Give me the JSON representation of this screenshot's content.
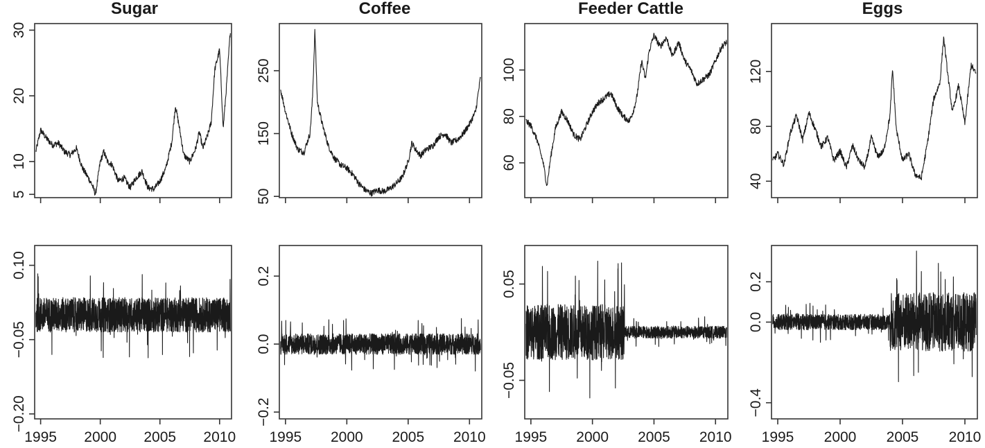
{
  "chart_data": [
    {
      "type": "line",
      "title": "Sugar",
      "xlim": [
        1994.5,
        2011.0
      ],
      "ylim": [
        4.5,
        31
      ],
      "yticks": [
        5,
        10,
        20,
        30
      ],
      "ytick_labels": [
        "5",
        "10",
        "20",
        "30"
      ],
      "xticks": [
        1995,
        2000,
        2005,
        2010
      ],
      "xtick_labels": [],
      "series": [
        {
          "x": [
            1994.6,
            1995.0,
            1995.5,
            1996.0,
            1996.5,
            1997.0,
            1997.5,
            1998.0,
            1998.5,
            1999.0,
            1999.3,
            1999.6,
            2000.0,
            2000.3,
            2000.6,
            2001.0,
            2001.5,
            2002.0,
            2002.5,
            2003.0,
            2003.5,
            2004.0,
            2004.5,
            2005.0,
            2005.5,
            2006.0,
            2006.3,
            2006.6,
            2007.0,
            2007.5,
            2008.0,
            2008.3,
            2008.6,
            2009.0,
            2009.3,
            2009.6,
            2010.0,
            2010.3,
            2010.6,
            2010.9
          ],
          "y": [
            11.5,
            14.8,
            13.5,
            12.5,
            12.8,
            11.5,
            11.0,
            12.0,
            9.0,
            7.5,
            6.5,
            5.0,
            10.0,
            11.5,
            10.0,
            9.5,
            7.0,
            7.5,
            6.0,
            7.5,
            8.5,
            6.0,
            5.8,
            7.0,
            9.0,
            13.0,
            18.5,
            15.5,
            11.0,
            10.0,
            12.0,
            14.5,
            12.0,
            14.0,
            16.0,
            24.0,
            27.0,
            15.0,
            22.0,
            30.0
          ]
        }
      ]
    },
    {
      "type": "line",
      "title": "Coffee",
      "xlim": [
        1994.5,
        2011.0
      ],
      "ylim": [
        48,
        325
      ],
      "yticks": [
        50,
        150,
        250
      ],
      "ytick_labels": [
        "50",
        "150",
        "250"
      ],
      "xticks": [
        1995,
        2000,
        2005,
        2010
      ],
      "xtick_labels": [],
      "series": [
        {
          "x": [
            1994.6,
            1995.0,
            1995.5,
            1996.0,
            1996.5,
            1997.0,
            1997.2,
            1997.4,
            1997.6,
            1998.0,
            1998.5,
            1999.0,
            1999.5,
            2000.0,
            2000.5,
            2001.0,
            2001.5,
            2002.0,
            2002.5,
            2003.0,
            2003.5,
            2004.0,
            2004.5,
            2005.0,
            2005.3,
            2005.6,
            2006.0,
            2006.5,
            2007.0,
            2007.5,
            2008.0,
            2008.5,
            2009.0,
            2009.5,
            2010.0,
            2010.5,
            2010.9
          ],
          "y": [
            220,
            185,
            150,
            125,
            120,
            150,
            205,
            315,
            200,
            165,
            130,
            110,
            100,
            95,
            85,
            70,
            60,
            55,
            60,
            58,
            62,
            70,
            80,
            105,
            135,
            125,
            115,
            125,
            130,
            145,
            150,
            135,
            140,
            150,
            165,
            185,
            240
          ]
        }
      ]
    },
    {
      "type": "line",
      "title": "Feeder Cattle",
      "xlim": [
        1994.5,
        2011.0
      ],
      "ylim": [
        45,
        120
      ],
      "yticks": [
        60,
        80,
        100
      ],
      "ytick_labels": [
        "60",
        "80",
        "100"
      ],
      "xticks": [
        1995,
        2000,
        2005,
        2010
      ],
      "xtick_labels": [],
      "series": [
        {
          "x": [
            1994.6,
            1995.0,
            1995.5,
            1996.0,
            1996.3,
            1996.6,
            1997.0,
            1997.5,
            1998.0,
            1998.5,
            1999.0,
            1999.5,
            2000.0,
            2000.5,
            2001.0,
            2001.5,
            2002.0,
            2002.5,
            2003.0,
            2003.3,
            2003.6,
            2004.0,
            2004.3,
            2004.6,
            2005.0,
            2005.5,
            2006.0,
            2006.5,
            2007.0,
            2007.5,
            2008.0,
            2008.5,
            2009.0,
            2009.5,
            2010.0,
            2010.5,
            2010.9
          ],
          "y": [
            78,
            76,
            70,
            60,
            50,
            62,
            75,
            82,
            78,
            72,
            70,
            76,
            82,
            86,
            88,
            90,
            84,
            80,
            78,
            82,
            88,
            104,
            96,
            108,
            115,
            110,
            114,
            106,
            112,
            104,
            100,
            94,
            96,
            98,
            104,
            110,
            112
          ]
        }
      ]
    },
    {
      "type": "line",
      "title": "Eggs",
      "xlim": [
        1994.5,
        2011.0
      ],
      "ylim": [
        28,
        155
      ],
      "yticks": [
        40,
        80,
        120
      ],
      "ytick_labels": [
        "40",
        "80",
        "120"
      ],
      "xticks": [
        1995,
        2000,
        2005,
        2010
      ],
      "xtick_labels": [],
      "series": [
        {
          "x": [
            1994.6,
            1995.0,
            1995.5,
            1996.0,
            1996.5,
            1997.0,
            1997.5,
            1998.0,
            1998.5,
            1999.0,
            1999.5,
            2000.0,
            2000.5,
            2001.0,
            2001.5,
            2002.0,
            2002.5,
            2003.0,
            2003.5,
            2004.0,
            2004.2,
            2004.5,
            2005.0,
            2005.5,
            2006.0,
            2006.5,
            2007.0,
            2007.5,
            2008.0,
            2008.3,
            2008.6,
            2009.0,
            2009.5,
            2010.0,
            2010.5,
            2010.9
          ],
          "y": [
            55,
            60,
            52,
            75,
            88,
            70,
            90,
            78,
            65,
            72,
            55,
            62,
            50,
            66,
            55,
            50,
            72,
            58,
            62,
            88,
            122,
            78,
            55,
            60,
            45,
            42,
            68,
            100,
            112,
            145,
            120,
            90,
            110,
            82,
            125,
            118
          ]
        }
      ]
    },
    {
      "type": "line",
      "title": "",
      "xlim": [
        1994.5,
        2011.0
      ],
      "ylim": [
        -0.21,
        0.14
      ],
      "yticks": [
        -0.2,
        -0.05,
        0.1
      ],
      "ytick_labels": [
        "−0.20",
        "−0.05",
        "0.10"
      ],
      "xticks": [
        1995,
        2000,
        2005,
        2010
      ],
      "xtick_labels": [
        "1995",
        "2000",
        "2005",
        "2010"
      ],
      "series": [
        {
          "x": [
            1994.6,
            2010.9
          ],
          "y": [
            0,
            0
          ]
        }
      ]
    },
    {
      "type": "line",
      "title": "",
      "xlim": [
        1994.5,
        2011.0
      ],
      "ylim": [
        -0.22,
        0.29
      ],
      "yticks": [
        -0.2,
        0.0,
        0.2
      ],
      "ytick_labels": [
        "−0.2",
        "0.0",
        "0.2"
      ],
      "xticks": [
        1995,
        2000,
        2005,
        2010
      ],
      "xtick_labels": [
        "1995",
        "2000",
        "2005",
        "2010"
      ],
      "series": [
        {
          "x": [
            1994.6,
            2010.9
          ],
          "y": [
            0,
            0
          ]
        }
      ]
    },
    {
      "type": "line",
      "title": "",
      "xlim": [
        1994.5,
        2011.0
      ],
      "ylim": [
        -0.09,
        0.09
      ],
      "yticks": [
        -0.05,
        0.05
      ],
      "ytick_labels": [
        "−0.05",
        "0.05"
      ],
      "xticks": [
        1995,
        2000,
        2005,
        2010
      ],
      "xtick_labels": [
        "1995",
        "2000",
        "2005",
        "2010"
      ],
      "series": [
        {
          "x": [
            1994.6,
            2010.9
          ],
          "y": [
            0,
            0
          ]
        }
      ]
    },
    {
      "type": "line",
      "title": "",
      "xlim": [
        1994.5,
        2011.0
      ],
      "ylim": [
        -0.48,
        0.38
      ],
      "yticks": [
        -0.4,
        0.0,
        0.2
      ],
      "ytick_labels": [
        "−0.4",
        "0.0",
        "0.2"
      ],
      "xticks": [
        1995,
        2000,
        2005,
        2010
      ],
      "xtick_labels": [
        "1995",
        "2000",
        "2005",
        "2010"
      ],
      "series": [
        {
          "x": [
            1994.6,
            2010.9
          ],
          "y": [
            0,
            0
          ]
        }
      ]
    }
  ]
}
